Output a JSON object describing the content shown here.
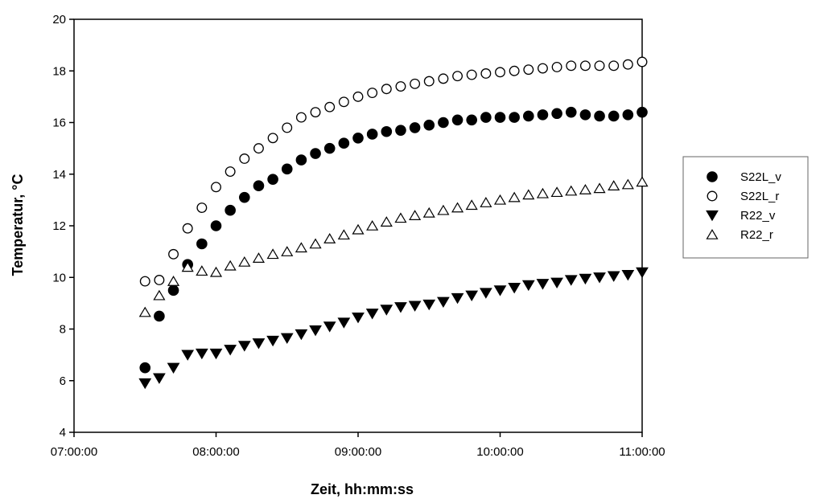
{
  "chart_data": {
    "type": "scatter",
    "title": "",
    "xlabel": "Zeit, hh:mm:ss",
    "ylabel": "Temperatur, °C",
    "xlim": [
      "07:00:00",
      "11:00:00"
    ],
    "ylim": [
      4,
      20
    ],
    "x_ticks": [
      "07:00:00",
      "08:00:00",
      "09:00:00",
      "10:00:00",
      "11:00:00"
    ],
    "y_ticks": [
      "4",
      "6",
      "8",
      "10",
      "12",
      "14",
      "16",
      "18",
      "20"
    ],
    "grid": false,
    "legend_position": "right",
    "x": [
      "07:30:00",
      "07:36:00",
      "07:42:00",
      "07:48:00",
      "07:54:00",
      "08:00:00",
      "08:06:00",
      "08:12:00",
      "08:18:00",
      "08:24:00",
      "08:30:00",
      "08:36:00",
      "08:42:00",
      "08:48:00",
      "08:54:00",
      "09:00:00",
      "09:06:00",
      "09:12:00",
      "09:18:00",
      "09:24:00",
      "09:30:00",
      "09:36:00",
      "09:42:00",
      "09:48:00",
      "09:54:00",
      "10:00:00",
      "10:06:00",
      "10:12:00",
      "10:18:00",
      "10:24:00",
      "10:30:00",
      "10:36:00",
      "10:42:00",
      "10:48:00",
      "10:54:00",
      "11:00:00"
    ],
    "series": [
      {
        "name": "S22L_v",
        "marker": "filled-circle",
        "values": [
          6.5,
          8.5,
          9.5,
          10.5,
          11.3,
          12.0,
          12.6,
          13.1,
          13.55,
          13.8,
          14.2,
          14.55,
          14.8,
          15.0,
          15.2,
          15.4,
          15.55,
          15.65,
          15.7,
          15.8,
          15.9,
          16.0,
          16.1,
          16.1,
          16.2,
          16.2,
          16.2,
          16.25,
          16.3,
          16.35,
          16.4,
          16.3,
          16.25,
          16.25,
          16.3,
          16.4
        ]
      },
      {
        "name": "S22L_r",
        "marker": "open-circle",
        "values": [
          9.85,
          9.9,
          10.9,
          11.9,
          12.7,
          13.5,
          14.1,
          14.6,
          15.0,
          15.4,
          15.8,
          16.2,
          16.4,
          16.6,
          16.8,
          17.0,
          17.15,
          17.3,
          17.4,
          17.5,
          17.6,
          17.7,
          17.8,
          17.85,
          17.9,
          17.95,
          18.0,
          18.05,
          18.1,
          18.15,
          18.2,
          18.2,
          18.2,
          18.2,
          18.25,
          18.35
        ]
      },
      {
        "name": "R22_v",
        "marker": "filled-triangle-down",
        "values": [
          5.9,
          6.1,
          6.5,
          7.0,
          7.05,
          7.05,
          7.2,
          7.35,
          7.45,
          7.55,
          7.65,
          7.8,
          7.95,
          8.1,
          8.25,
          8.45,
          8.6,
          8.75,
          8.85,
          8.9,
          8.95,
          9.05,
          9.2,
          9.3,
          9.4,
          9.5,
          9.6,
          9.7,
          9.75,
          9.8,
          9.9,
          9.95,
          10.0,
          10.05,
          10.1,
          10.2
        ]
      },
      {
        "name": "R22_r",
        "marker": "open-triangle-up",
        "values": [
          8.65,
          9.3,
          9.85,
          10.4,
          10.25,
          10.2,
          10.45,
          10.6,
          10.75,
          10.9,
          11.0,
          11.15,
          11.3,
          11.5,
          11.65,
          11.85,
          12.0,
          12.15,
          12.3,
          12.4,
          12.5,
          12.6,
          12.7,
          12.8,
          12.9,
          13.0,
          13.1,
          13.2,
          13.25,
          13.3,
          13.35,
          13.4,
          13.45,
          13.55,
          13.6,
          13.7
        ]
      }
    ]
  }
}
